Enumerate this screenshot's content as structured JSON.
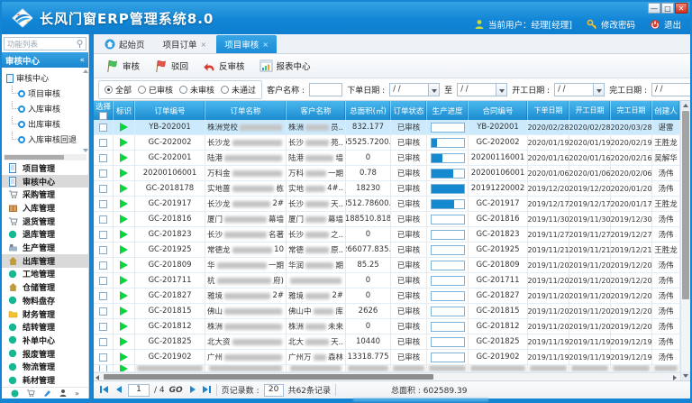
{
  "window": {
    "title": "长风门窗ERP管理系统8.0"
  },
  "titlebar": {
    "user": "当前用户：经理[经理]",
    "change_password": "修改密码",
    "logout": "退出"
  },
  "sidebar": {
    "search_placeholder": "功能列表",
    "panel_title": "审核中心",
    "collapse_glyph": "«",
    "tree_root": "审核中心",
    "tree_items": [
      "项目审核",
      "入库审核",
      "出库审核",
      "入库审核回退"
    ],
    "modules": [
      {
        "label": "项目管理",
        "icon": "doc",
        "selected": false
      },
      {
        "label": "审核中心",
        "icon": "doc",
        "selected": true
      },
      {
        "label": "采购管理",
        "icon": "cart",
        "selected": false
      },
      {
        "label": "入库管理",
        "icon": "box",
        "selected": false
      },
      {
        "label": "退货管理",
        "icon": "cart",
        "selected": false
      },
      {
        "label": "退库管理",
        "icon": "dot",
        "selected": false
      },
      {
        "label": "生产管理",
        "icon": "machine",
        "selected": false
      },
      {
        "label": "出库管理",
        "icon": "home",
        "selected": true
      },
      {
        "label": "工地管理",
        "icon": "dot",
        "selected": false
      },
      {
        "label": "仓储管理",
        "icon": "home",
        "selected": false
      },
      {
        "label": "物料盘存",
        "icon": "dot",
        "selected": false
      },
      {
        "label": "财务管理",
        "icon": "folder",
        "selected": false
      },
      {
        "label": "结转管理",
        "icon": "dot",
        "selected": false
      },
      {
        "label": "补单中心",
        "icon": "dot",
        "selected": false
      },
      {
        "label": "报废管理",
        "icon": "dot",
        "selected": false
      },
      {
        "label": "物流管理",
        "icon": "dot",
        "selected": false
      },
      {
        "label": "耗材管理",
        "icon": "dot",
        "selected": false
      }
    ]
  },
  "tabs": [
    {
      "label": "起始页",
      "icon": "home",
      "closable": false,
      "active": false
    },
    {
      "label": "项目订单",
      "icon": "",
      "closable": true,
      "active": false
    },
    {
      "label": "项目审核",
      "icon": "",
      "closable": true,
      "active": true
    }
  ],
  "toolbar": [
    {
      "label": "审核",
      "icon": "flag-green"
    },
    {
      "label": "驳回",
      "icon": "flag-red"
    },
    {
      "label": "反审核",
      "icon": "undo-arrow"
    },
    {
      "label": "报表中心",
      "icon": "report-chart"
    }
  ],
  "filters": {
    "radios": [
      {
        "label": "全部",
        "checked": true
      },
      {
        "label": "已审核",
        "checked": false
      },
      {
        "label": "未审核",
        "checked": false
      },
      {
        "label": "未通过",
        "checked": false
      }
    ],
    "customer_label": "客户名称 :",
    "order_date_label": "下单日期 :",
    "range_to": "至",
    "start_date_label": "开工日期 :",
    "finish_date_label": "完工日期 :",
    "date_value": "/  /"
  },
  "grid": {
    "columns": [
      "选择",
      "标识",
      "订单编号",
      "订单名称",
      "客户名称",
      "总面积(㎡)",
      "订单状态",
      "生产进度",
      "合同编号",
      "下单日期",
      "开工日期",
      "完工日期",
      "创建人"
    ],
    "rows": [
      {
        "no": "YB-202001",
        "n1": "株洲党校",
        "n2": "",
        "c1": "株洲",
        "c2": "员..",
        "area": "832.177",
        "st": "已审核",
        "pg": 0,
        "ct": "YB-202001",
        "d1": "2020/02/28",
        "d2": "2020/02/28",
        "d3": "2020/03/28",
        "cr": "谌雷",
        "sel": true
      },
      {
        "no": "GC-202002",
        "n1": "长沙龙",
        "n2": "",
        "c1": "长沙",
        "c2": "苑..",
        "area": "65525.7200..",
        "st": "已审核",
        "pg": 18,
        "ct": "GC-202002",
        "d1": "2020/01/19",
        "d2": "2020/01/19",
        "d3": "2020/02/19",
        "cr": "王胜龙",
        "sel": false
      },
      {
        "no": "GC-202001",
        "n1": "陆港",
        "n2": "",
        "c1": "陆港",
        "c2": "墙",
        "area": "0",
        "st": "已审核",
        "pg": 35,
        "ct": "20200116001",
        "d1": "2020/01/16",
        "d2": "2020/01/16",
        "d3": "2020/02/16",
        "cr": "吴解华",
        "sel": false
      },
      {
        "no": "20200106001",
        "n1": "万科金",
        "n2": "",
        "c1": "万科",
        "c2": "一期",
        "area": "0.78",
        "st": "已审核",
        "pg": 68,
        "ct": "20200106001",
        "d1": "2020/01/06",
        "d2": "2020/01/06",
        "d3": "2020/02/06",
        "cr": "汤伟",
        "sel": false
      },
      {
        "no": "GC-2018178",
        "n1": "实地蔷",
        "n2": "栋",
        "c1": "实地",
        "c2": "4#..",
        "area": "18230",
        "st": "已审核",
        "pg": 100,
        "ct": "20191220002",
        "d1": "2019/12/20",
        "d2": "2019/12/20",
        "d3": "2020/01/20",
        "cr": "汤伟",
        "sel": false
      },
      {
        "no": "GC-201917",
        "n1": "长沙龙",
        "n2": "2#",
        "c1": "长沙",
        "c2": "天..",
        "area": "8512.78600..",
        "st": "已审核",
        "pg": 70,
        "ct": "GC-201917",
        "d1": "2019/12/17",
        "d2": "2019/12/17",
        "d3": "2020/01/17",
        "cr": "王胜龙",
        "sel": false
      },
      {
        "no": "GC-201816",
        "n1": "厦门",
        "n2": "幕墙",
        "c1": "厦门",
        "c2": "幕墙",
        "area": "188510.818",
        "st": "已审核",
        "pg": 0,
        "ct": "GC-201816",
        "d1": "2019/11/30",
        "d2": "2019/11/30",
        "d3": "2019/12/30",
        "cr": "汤伟",
        "sel": false
      },
      {
        "no": "GC-201823",
        "n1": "长沙",
        "n2": "名著",
        "c1": "长沙",
        "c2": "之..",
        "area": "0",
        "st": "已审核",
        "pg": 0,
        "ct": "GC-201823",
        "d1": "2019/11/27",
        "d2": "2019/11/27",
        "d3": "2019/12/27",
        "cr": "汤伟",
        "sel": false
      },
      {
        "no": "GC-201925",
        "n1": "常德龙",
        "n2": "10",
        "c1": "常德",
        "c2": "原..",
        "area": "266077.835..",
        "st": "已审核",
        "pg": 0,
        "ct": "GC-201925",
        "d1": "2019/11/21",
        "d2": "2019/11/21",
        "d3": "2019/12/21",
        "cr": "王胜龙",
        "sel": false
      },
      {
        "no": "GC-201809",
        "n1": "华",
        "n2": "一期",
        "c1": "华润",
        "c2": "期",
        "area": "85.25",
        "st": "已审核",
        "pg": 0,
        "ct": "GC-201809",
        "d1": "2019/11/20",
        "d2": "2019/11/20",
        "d3": "2019/12/20",
        "cr": "汤伟",
        "sel": false
      },
      {
        "no": "GC-201711",
        "n1": "杭",
        "n2": "府)",
        "c1": "",
        "c2": "",
        "area": "0",
        "st": "已审核",
        "pg": 0,
        "ct": "GC-201711",
        "d1": "2019/11/20",
        "d2": "2019/11/20",
        "d3": "2019/12/20",
        "cr": "汤伟",
        "sel": false
      },
      {
        "no": "GC-201827",
        "n1": "雅境",
        "n2": "2#",
        "c1": "雅境",
        "c2": "2#",
        "area": "0",
        "st": "已审核",
        "pg": 0,
        "ct": "GC-201827",
        "d1": "2019/11/20",
        "d2": "2019/11/20",
        "d3": "2019/12/20",
        "cr": "汤伟",
        "sel": false
      },
      {
        "no": "GC-201815",
        "n1": "佛山",
        "n2": "",
        "c1": "佛山中",
        "c2": "库",
        "area": "2626",
        "st": "已审核",
        "pg": 0,
        "ct": "GC-201815",
        "d1": "2019/11/20",
        "d2": "2019/11/20",
        "d3": "2019/12/20",
        "cr": "汤伟",
        "sel": false
      },
      {
        "no": "GC-201812",
        "n1": "株洲",
        "n2": "",
        "c1": "株洲",
        "c2": "未来",
        "area": "0",
        "st": "已审核",
        "pg": 0,
        "ct": "GC-201812",
        "d1": "2019/11/20",
        "d2": "2019/11/20",
        "d3": "2019/12/20",
        "cr": "汤伟",
        "sel": false
      },
      {
        "no": "GC-201825",
        "n1": "北大资",
        "n2": "",
        "c1": "北大",
        "c2": "天..",
        "area": "10440",
        "st": "已审核",
        "pg": 0,
        "ct": "GC-201825",
        "d1": "2019/11/19",
        "d2": "2019/11/19",
        "d3": "2019/12/19",
        "cr": "汤伟",
        "sel": false
      },
      {
        "no": "GC-201902",
        "n1": "广州",
        "n2": "",
        "c1": "广州万",
        "c2": "森林",
        "area": "13318.775",
        "st": "已审核",
        "pg": 0,
        "ct": "GC-201902",
        "d1": "2019/11/19",
        "d2": "2019/11/19",
        "d3": "2019/12/19",
        "cr": "汤伟",
        "sel": false
      }
    ]
  },
  "pagination": {
    "page": "1",
    "pages": "/ 4",
    "go": "GO",
    "page_size_label": "页记录数 :",
    "page_size": "20",
    "total_records": "共62条记录",
    "total_area": "总面积 : 602589.39"
  }
}
